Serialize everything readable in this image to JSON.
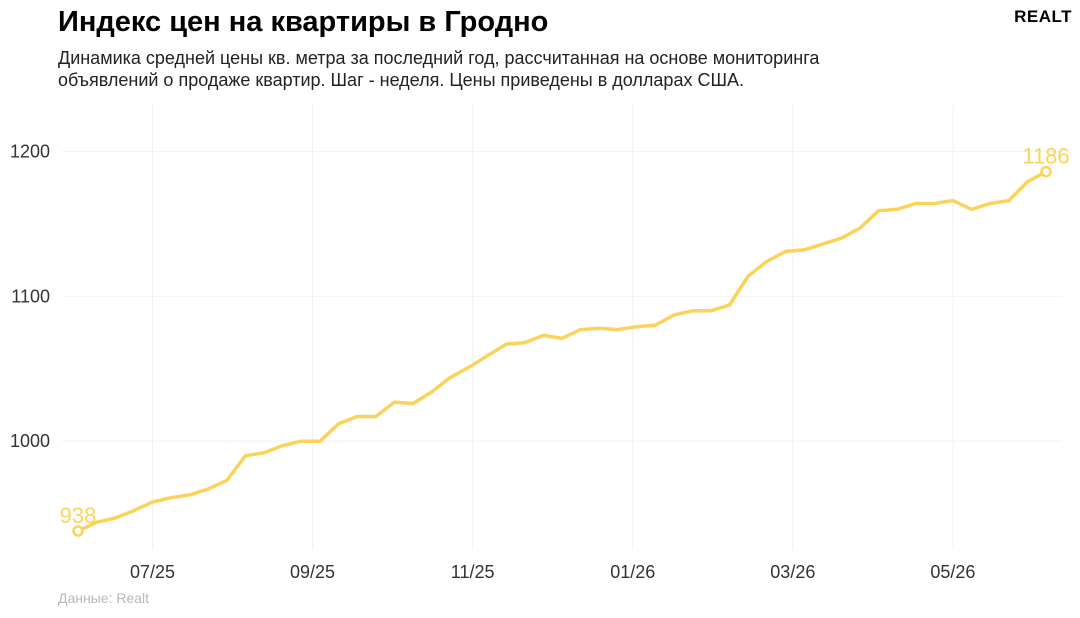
{
  "header": {
    "title": "Индекс цен на квартиры в Гродно",
    "subtitle": "Динамика средней цены кв. метра за последний год, рассчитанная на основе мониторинга объявлений о продаже квартир. Шаг - неделя. Цены приведены в долларах США.",
    "logo": "REALT"
  },
  "footer": {
    "source": "Данные: Realt"
  },
  "colors": {
    "line": "#fcd35a",
    "grid": "#f2f2f2",
    "tick": "#333333"
  },
  "chart_data": {
    "type": "line",
    "title": "Индекс цен на квартиры в Гродно",
    "xlabel": "",
    "ylabel": "",
    "ylim": [
      918,
      1232
    ],
    "yticks": [
      1000,
      1100,
      1200
    ],
    "xticks": [
      "07/25",
      "09/25",
      "11/25",
      "01/26",
      "03/26",
      "05/26"
    ],
    "grid": true,
    "legend": "none",
    "series": [
      {
        "values": [
          938,
          944,
          947,
          952,
          958,
          961,
          963,
          967,
          973,
          990,
          992,
          997,
          1000,
          1000,
          1012,
          1017,
          1017,
          1027,
          1026,
          1034,
          1044,
          1051,
          1059,
          1067,
          1068,
          1073,
          1071,
          1077,
          1078,
          1077,
          1079,
          1080,
          1087,
          1090,
          1090,
          1094,
          1114,
          1124,
          1131,
          1132,
          1136,
          1140,
          1147,
          1159,
          1160,
          1164,
          1164,
          1166,
          1160,
          1164,
          1166,
          1179,
          1186
        ]
      }
    ],
    "annotations": [
      {
        "index": 0,
        "text": "938"
      },
      {
        "index": 52,
        "text": "1186"
      }
    ]
  }
}
